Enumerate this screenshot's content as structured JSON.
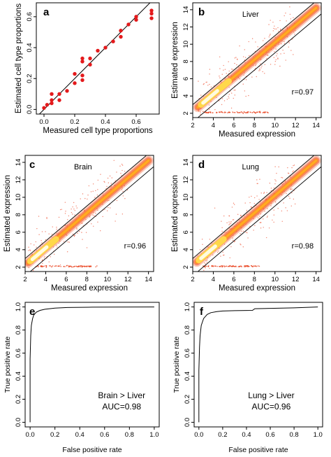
{
  "chart_data": [
    {
      "id": "a",
      "type": "scatter",
      "letter": "a",
      "title": "",
      "xlabel": "Measured cell type proportions",
      "ylabel": "Estimated cell type proportions",
      "xlim": [
        -0.05,
        0.75
      ],
      "ylim": [
        -0.03,
        0.69
      ],
      "xticks": [
        0.0,
        0.2,
        0.4,
        0.6
      ],
      "yticks": [
        0.0,
        0.2,
        0.4,
        0.6
      ],
      "tick_labels_x": [
        "0.0",
        "0.2",
        "0.4",
        "0.6"
      ],
      "tick_labels_y": [
        "0.0",
        "0.2",
        "0.4",
        "0.6"
      ],
      "reference_line": "y = x",
      "point_color": "#e41a1c",
      "points": [
        [
          0.0,
          0.01
        ],
        [
          0.02,
          0.03
        ],
        [
          0.05,
          0.04
        ],
        [
          0.05,
          0.06
        ],
        [
          0.05,
          0.1
        ],
        [
          0.1,
          0.06
        ],
        [
          0.1,
          0.1
        ],
        [
          0.15,
          0.12
        ],
        [
          0.2,
          0.17
        ],
        [
          0.2,
          0.23
        ],
        [
          0.25,
          0.19
        ],
        [
          0.25,
          0.22
        ],
        [
          0.25,
          0.31
        ],
        [
          0.25,
          0.33
        ],
        [
          0.3,
          0.33
        ],
        [
          0.3,
          0.29
        ],
        [
          0.35,
          0.38
        ],
        [
          0.4,
          0.4
        ],
        [
          0.45,
          0.44
        ],
        [
          0.5,
          0.47
        ],
        [
          0.5,
          0.51
        ],
        [
          0.55,
          0.55
        ],
        [
          0.6,
          0.58
        ],
        [
          0.6,
          0.6
        ],
        [
          0.7,
          0.59
        ],
        [
          0.7,
          0.62
        ],
        [
          0.7,
          0.64
        ]
      ]
    },
    {
      "id": "b",
      "type": "scatter",
      "letter": "b",
      "title": "Liver",
      "xlabel": "Measured expression",
      "ylabel": "Estimated expression",
      "xlim": [
        2.0,
        14.5
      ],
      "ylim": [
        1.5,
        14.8
      ],
      "xticks": [
        2,
        4,
        6,
        8,
        10,
        12,
        14
      ],
      "yticks": [
        2,
        4,
        6,
        8,
        10,
        12,
        14
      ],
      "tick_labels_x": [
        "2",
        "4",
        "6",
        "8",
        "10",
        "12",
        "14"
      ],
      "tick_labels_y": [
        "2",
        "4",
        "6",
        "8",
        "10",
        "12",
        "14"
      ],
      "annotation": "r=0.97",
      "band_lines": [
        "y = x + 1",
        "y = x - 1"
      ],
      "density_band": {
        "x_from": 2.5,
        "x_to": 14.0,
        "slope": 1.0,
        "intercept": 0.2,
        "dense_core_x": [
          2.8,
          5.5
        ]
      },
      "floor_line": {
        "y": 2.1,
        "x_from": 3.0,
        "x_to": 9.5
      }
    },
    {
      "id": "c",
      "type": "scatter",
      "letter": "c",
      "title": "Brain",
      "xlabel": "Measured expression",
      "ylabel": "Estimated expression",
      "xlim": [
        2.0,
        14.5
      ],
      "ylim": [
        1.5,
        14.8
      ],
      "xticks": [
        2,
        4,
        6,
        8,
        10,
        12,
        14
      ],
      "yticks": [
        2,
        4,
        6,
        8,
        10,
        12,
        14
      ],
      "tick_labels_x": [
        "2",
        "4",
        "6",
        "8",
        "10",
        "12",
        "14"
      ],
      "tick_labels_y": [
        "2",
        "4",
        "6",
        "8",
        "10",
        "12",
        "14"
      ],
      "annotation": "r=0.96",
      "band_lines": [
        "y = x + 1",
        "y = x - 1"
      ],
      "density_band": {
        "x_from": 2.3,
        "x_to": 14.0,
        "slope": 1.0,
        "intercept": 0.2,
        "dense_core_x": [
          2.5,
          5.0
        ]
      },
      "floor_line": {
        "y": 2.1,
        "x_from": 3.0,
        "x_to": 9.0
      }
    },
    {
      "id": "d",
      "type": "scatter",
      "letter": "d",
      "title": "Lung",
      "xlabel": "Measured expression",
      "ylabel": "Estimated expression",
      "xlim": [
        2.0,
        14.5
      ],
      "ylim": [
        1.5,
        14.8
      ],
      "xticks": [
        2,
        4,
        6,
        8,
        10,
        12,
        14
      ],
      "yticks": [
        2,
        4,
        6,
        8,
        10,
        12,
        14
      ],
      "tick_labels_x": [
        "2",
        "4",
        "6",
        "8",
        "10",
        "12",
        "14"
      ],
      "tick_labels_y": [
        "2",
        "4",
        "6",
        "8",
        "10",
        "12",
        "14"
      ],
      "annotation": "r=0.98",
      "band_lines": [
        "y = x + 1",
        "y = x - 1"
      ],
      "density_band": {
        "x_from": 2.4,
        "x_to": 14.0,
        "slope": 1.0,
        "intercept": 0.2,
        "dense_core_x": [
          2.6,
          5.0
        ]
      },
      "floor_line": {
        "y": 2.1,
        "x_from": 3.0,
        "x_to": 8.5
      }
    },
    {
      "id": "e",
      "type": "line",
      "letter": "e",
      "title": "",
      "xlabel": "False positive rate",
      "ylabel": "True positive rate",
      "xlim": [
        -0.04,
        1.04
      ],
      "ylim": [
        -0.04,
        1.04
      ],
      "xticks": [
        0.0,
        0.2,
        0.4,
        0.6,
        0.8,
        1.0
      ],
      "yticks": [
        0.0,
        0.2,
        0.4,
        0.6,
        0.8,
        1.0
      ],
      "tick_labels_x": [
        "0.0",
        "0.2",
        "0.4",
        "0.6",
        "0.8",
        "1.0"
      ],
      "tick_labels_y": [
        "0.0",
        "0.2",
        "0.4",
        "0.6",
        "0.8",
        "1.0"
      ],
      "annotation_lines": [
        "Brain > Liver",
        "AUC=0.98"
      ],
      "x": [
        0.0,
        0.0,
        0.005,
        0.01,
        0.02,
        0.03,
        0.05,
        0.08,
        0.12,
        0.2,
        0.3,
        0.5,
        0.7,
        1.0
      ],
      "y": [
        0.0,
        0.55,
        0.75,
        0.84,
        0.9,
        0.93,
        0.955,
        0.97,
        0.98,
        0.99,
        0.995,
        0.998,
        0.999,
        1.0
      ]
    },
    {
      "id": "f",
      "type": "line",
      "letter": "f",
      "title": "",
      "xlabel": "False positive rate",
      "ylabel": "True positive rate",
      "xlim": [
        -0.04,
        1.04
      ],
      "ylim": [
        -0.04,
        1.04
      ],
      "xticks": [
        0.0,
        0.2,
        0.4,
        0.6,
        0.8,
        1.0
      ],
      "yticks": [
        0.0,
        0.2,
        0.4,
        0.6,
        0.8,
        1.0
      ],
      "tick_labels_x": [
        "0.0",
        "0.2",
        "0.4",
        "0.6",
        "0.8",
        "1.0"
      ],
      "tick_labels_y": [
        "0.0",
        "0.2",
        "0.4",
        "0.6",
        "0.8",
        "1.0"
      ],
      "annotation_lines": [
        "Lung > Liver",
        "AUC=0.96"
      ],
      "x": [
        0.0,
        0.0,
        0.005,
        0.01,
        0.02,
        0.04,
        0.07,
        0.1,
        0.15,
        0.2,
        0.3,
        0.45,
        0.47,
        0.6,
        0.8,
        1.0
      ],
      "y": [
        0.0,
        0.45,
        0.65,
        0.75,
        0.84,
        0.9,
        0.935,
        0.95,
        0.96,
        0.965,
        0.968,
        0.97,
        0.985,
        0.988,
        0.992,
        1.0
      ]
    }
  ]
}
